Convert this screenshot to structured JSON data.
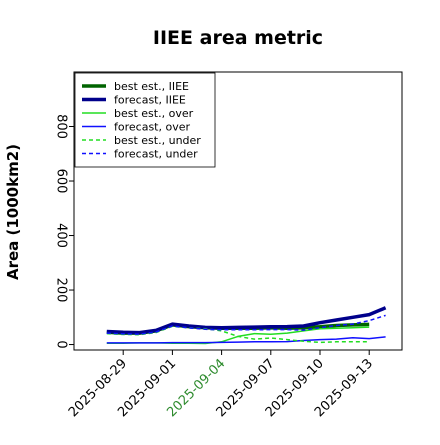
{
  "chart_data": {
    "type": "line",
    "title": "IIEE area metric",
    "xlabel": "",
    "ylabel": "Area (1000km2)",
    "ylim": [
      -20,
      1000
    ],
    "yticks": [
      0,
      200,
      400,
      600,
      800
    ],
    "xlim": [
      "2025-08-26",
      "2025-09-15"
    ],
    "xticks": [
      "2025-08-29",
      "2025-09-01",
      "2025-09-04",
      "2025-09-07",
      "2025-09-10",
      "2025-09-13"
    ],
    "highlight_tick": "2025-09-04",
    "highlight_color": "#2e8b2e",
    "grid": false,
    "legend_position": "upper-left",
    "x": [
      "2025-08-28",
      "2025-08-29",
      "2025-08-30",
      "2025-08-31",
      "2025-09-01",
      "2025-09-02",
      "2025-09-03",
      "2025-09-04",
      "2025-09-05",
      "2025-09-06",
      "2025-09-07",
      "2025-09-08",
      "2025-09-09",
      "2025-09-10",
      "2025-09-11",
      "2025-09-12",
      "2025-09-13",
      "2025-09-14"
    ],
    "series": [
      {
        "name": "best est., IIEE",
        "color": "#006400",
        "dash": "",
        "width": 3.5,
        "values": [
          45,
          42,
          42,
          50,
          72,
          66,
          62,
          60,
          60,
          60,
          62,
          60,
          62,
          65,
          70,
          72,
          74,
          null
        ]
      },
      {
        "name": "forecast, IIEE",
        "color": "#00008b",
        "dash": "",
        "width": 3.5,
        "values": [
          48,
          45,
          44,
          52,
          75,
          68,
          63,
          62,
          63,
          64,
          65,
          66,
          68,
          80,
          90,
          100,
          110,
          135
        ]
      },
      {
        "name": "best est., over",
        "color": "#22dd22",
        "dash": "",
        "width": 1.5,
        "values": [
          5,
          5,
          6,
          6,
          5,
          5,
          4,
          10,
          30,
          40,
          38,
          42,
          50,
          58,
          60,
          62,
          64,
          null
        ]
      },
      {
        "name": "forecast, over",
        "color": "#1010ff",
        "dash": "",
        "width": 1.5,
        "values": [
          6,
          6,
          6,
          6,
          7,
          7,
          7,
          8,
          9,
          10,
          10,
          11,
          15,
          18,
          20,
          25,
          22,
          28
        ]
      },
      {
        "name": "best est., under",
        "color": "#22dd22",
        "dash": "4,3",
        "width": 1.5,
        "values": [
          40,
          37,
          36,
          44,
          67,
          61,
          58,
          50,
          30,
          20,
          24,
          18,
          12,
          8,
          10,
          10,
          10,
          null
        ]
      },
      {
        "name": "forecast, under",
        "color": "#1010ff",
        "dash": "4,3",
        "width": 1.5,
        "values": [
          42,
          39,
          38,
          46,
          68,
          61,
          56,
          54,
          54,
          54,
          55,
          55,
          53,
          62,
          70,
          75,
          88,
          107
        ]
      }
    ]
  }
}
